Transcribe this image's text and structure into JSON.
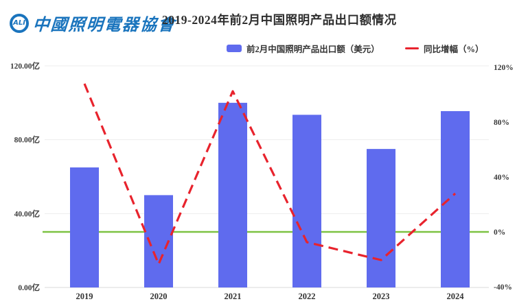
{
  "header": {
    "logo_mark": "ALI",
    "logo_text": "中國照明電器協會",
    "title": "2019-2024年前2月中国照明产品出口额情况"
  },
  "legend": {
    "bar_label": "前2月中国照明产品出口额（美元）",
    "line_label": "同比增幅（%）"
  },
  "chart_data": {
    "type": "bar",
    "title": "2019-2024年前2月中国照明产品出口额情况",
    "categories": [
      "2019",
      "2020",
      "2021",
      "2022",
      "2023",
      "2024"
    ],
    "series": [
      {
        "name": "前2月中国照明产品出口额（美元）",
        "type": "bar",
        "axis": "left",
        "unit": "亿美元",
        "values": [
          65,
          50,
          100,
          93.5,
          75,
          95.5
        ],
        "color": "#5f6bee"
      },
      {
        "name": "同比增幅（%）",
        "type": "line",
        "axis": "right",
        "unit": "%",
        "values": [
          108,
          -23.5,
          102.5,
          -7.5,
          -20.5,
          28
        ],
        "color": "#e8232d",
        "style": "dashed"
      }
    ],
    "left_axis": {
      "tick_labels": [
        "120.00亿",
        "80.00亿",
        "40.00亿",
        "0.00亿"
      ],
      "tick_values": [
        120,
        80,
        40,
        0
      ],
      "ylim": [
        0,
        120
      ]
    },
    "right_axis": {
      "tick_labels": [
        "120%",
        "80%",
        "40%",
        "0%",
        "-40%"
      ],
      "tick_values": [
        120,
        80,
        40,
        0,
        -40
      ],
      "ylim": [
        -40,
        120
      ]
    },
    "zero_line": {
      "axis": "right",
      "value": 0,
      "color": "#7cc242"
    },
    "grid": true,
    "legend_position": "top"
  },
  "colors": {
    "brand_blue": "#1a74bd",
    "bar_fill": "#5f6bee",
    "line_red": "#e8232d",
    "zero_green": "#7cc242",
    "grid_line": "#ededed",
    "baseline": "#d8d8d8",
    "text": "#333333"
  }
}
